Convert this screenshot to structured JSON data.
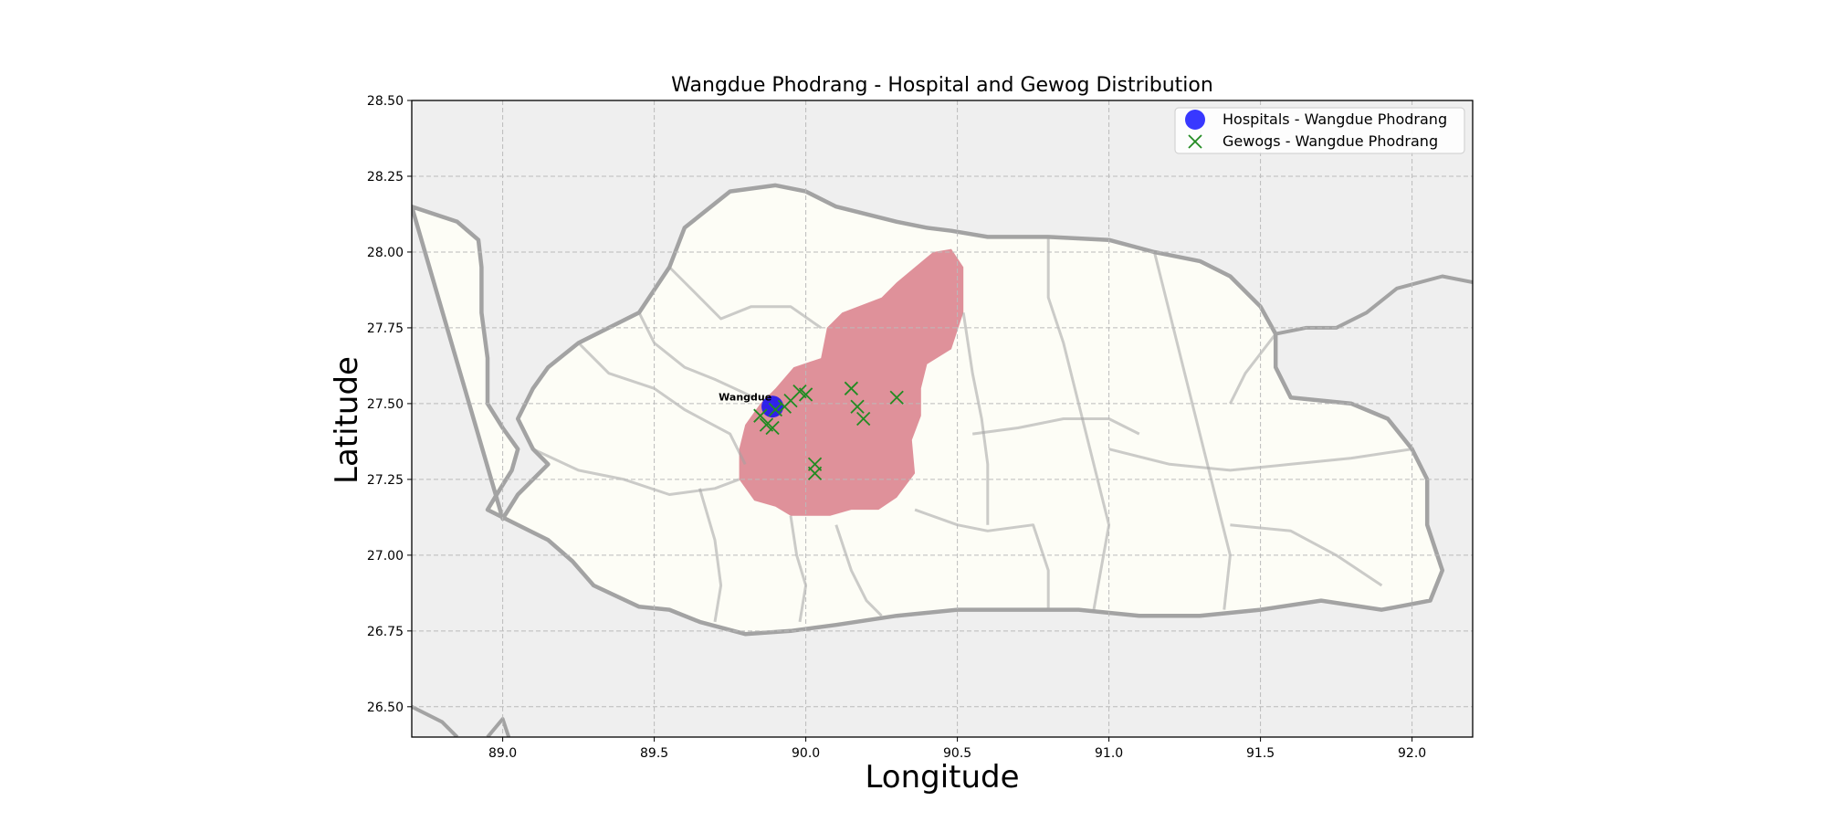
{
  "chart_data": {
    "type": "scatter",
    "title": "Wangdue Phodrang - Hospital and Gewog Distribution",
    "xlabel": "Longitude",
    "ylabel": "Latitude",
    "xlim": [
      88.7,
      92.2
    ],
    "ylim": [
      26.4,
      28.5
    ],
    "xticks": [
      89.0,
      89.5,
      90.0,
      90.5,
      91.0,
      91.5,
      92.0
    ],
    "yticks": [
      26.5,
      26.75,
      27.0,
      27.25,
      27.5,
      27.75,
      28.0,
      28.25,
      28.5
    ],
    "xtick_labels": [
      "89.0",
      "89.5",
      "90.0",
      "90.5",
      "91.0",
      "91.5",
      "92.0"
    ],
    "ytick_labels": [
      "26.50",
      "26.75",
      "27.00",
      "27.25",
      "27.50",
      "27.75",
      "28.00",
      "28.25",
      "28.50"
    ],
    "grid": true,
    "legend_position": "top-right",
    "series": [
      {
        "name": "Hospitals - Wangdue Phodrang",
        "marker": "circle",
        "color": "#0000ff",
        "points": [
          {
            "x": 89.89,
            "y": 27.49
          }
        ]
      },
      {
        "name": "Gewogs - Wangdue Phodrang",
        "marker": "x",
        "color": "#228b22",
        "points": [
          {
            "x": 89.85,
            "y": 27.46
          },
          {
            "x": 89.87,
            "y": 27.43
          },
          {
            "x": 89.89,
            "y": 27.42
          },
          {
            "x": 89.9,
            "y": 27.48
          },
          {
            "x": 89.93,
            "y": 27.49
          },
          {
            "x": 89.95,
            "y": 27.51
          },
          {
            "x": 89.98,
            "y": 27.54
          },
          {
            "x": 90.0,
            "y": 27.53
          },
          {
            "x": 90.03,
            "y": 27.3
          },
          {
            "x": 90.03,
            "y": 27.27
          },
          {
            "x": 90.15,
            "y": 27.55
          },
          {
            "x": 90.17,
            "y": 27.49
          },
          {
            "x": 90.19,
            "y": 27.45
          },
          {
            "x": 90.3,
            "y": 27.52
          }
        ]
      }
    ],
    "annotations": [
      {
        "text": "Wangdue",
        "x": 89.8,
        "y": 27.51
      }
    ]
  },
  "map": {
    "colors": {
      "background": "#efefef",
      "country_fill": "#fdfdf6",
      "border": "#a3a3a3",
      "highlight_fill": "#df919a",
      "grid": "#bbbbbb"
    },
    "country_outline": [
      [
        88.7,
        28.15
      ],
      [
        88.85,
        28.1
      ],
      [
        88.92,
        28.04
      ],
      [
        88.93,
        27.95
      ],
      [
        88.93,
        27.8
      ],
      [
        88.95,
        27.65
      ],
      [
        88.95,
        27.5
      ],
      [
        89.0,
        27.42
      ],
      [
        89.05,
        27.35
      ],
      [
        89.03,
        27.28
      ],
      [
        88.98,
        27.2
      ],
      [
        88.95,
        27.15
      ],
      [
        89.05,
        27.1
      ],
      [
        89.15,
        27.05
      ],
      [
        89.23,
        26.98
      ],
      [
        89.3,
        26.9
      ],
      [
        89.45,
        26.83
      ],
      [
        89.55,
        26.82
      ],
      [
        89.65,
        26.78
      ],
      [
        89.8,
        26.74
      ],
      [
        89.95,
        26.75
      ],
      [
        90.1,
        26.77
      ],
      [
        90.3,
        26.8
      ],
      [
        90.5,
        26.82
      ],
      [
        90.7,
        26.82
      ],
      [
        90.9,
        26.82
      ],
      [
        91.1,
        26.8
      ],
      [
        91.3,
        26.8
      ],
      [
        91.5,
        26.82
      ],
      [
        91.7,
        26.85
      ],
      [
        91.9,
        26.82
      ],
      [
        92.06,
        26.85
      ],
      [
        92.1,
        26.95
      ],
      [
        92.05,
        27.1
      ],
      [
        92.05,
        27.25
      ],
      [
        92.0,
        27.35
      ],
      [
        91.92,
        27.45
      ],
      [
        91.8,
        27.5
      ],
      [
        91.6,
        27.52
      ],
      [
        91.55,
        27.62
      ],
      [
        91.55,
        27.73
      ],
      [
        91.5,
        27.82
      ],
      [
        91.4,
        27.92
      ],
      [
        91.3,
        27.97
      ],
      [
        91.15,
        28.0
      ],
      [
        91.0,
        28.04
      ],
      [
        90.8,
        28.05
      ],
      [
        90.6,
        28.05
      ],
      [
        90.48,
        28.07
      ],
      [
        90.4,
        28.08
      ],
      [
        90.3,
        28.1
      ],
      [
        90.1,
        28.15
      ],
      [
        90.0,
        28.2
      ],
      [
        89.9,
        28.22
      ],
      [
        89.75,
        28.2
      ],
      [
        89.6,
        28.08
      ],
      [
        89.55,
        27.95
      ],
      [
        89.45,
        27.8
      ],
      [
        89.35,
        27.75
      ],
      [
        89.25,
        27.7
      ],
      [
        89.15,
        27.62
      ],
      [
        89.1,
        27.55
      ],
      [
        89.05,
        27.45
      ],
      [
        89.1,
        27.35
      ],
      [
        89.15,
        27.3
      ],
      [
        89.05,
        27.2
      ],
      [
        89.0,
        27.12
      ]
    ],
    "highlight_region": [
      [
        90.48,
        28.01
      ],
      [
        90.52,
        27.95
      ],
      [
        90.52,
        27.8
      ],
      [
        90.48,
        27.68
      ],
      [
        90.4,
        27.63
      ],
      [
        90.38,
        27.55
      ],
      [
        90.38,
        27.46
      ],
      [
        90.35,
        27.38
      ],
      [
        90.36,
        27.27
      ],
      [
        90.3,
        27.19
      ],
      [
        90.24,
        27.15
      ],
      [
        90.15,
        27.15
      ],
      [
        90.08,
        27.13
      ],
      [
        89.95,
        27.13
      ],
      [
        89.9,
        27.16
      ],
      [
        89.83,
        27.18
      ],
      [
        89.78,
        27.25
      ],
      [
        89.78,
        27.35
      ],
      [
        89.8,
        27.43
      ],
      [
        89.85,
        27.5
      ],
      [
        89.9,
        27.55
      ],
      [
        89.96,
        27.62
      ],
      [
        90.05,
        27.65
      ],
      [
        90.07,
        27.75
      ],
      [
        90.12,
        27.8
      ],
      [
        90.25,
        27.85
      ],
      [
        90.3,
        27.9
      ],
      [
        90.42,
        28.0
      ]
    ],
    "internal_borders": [
      [
        [
          89.55,
          27.95
        ],
        [
          89.65,
          27.85
        ],
        [
          89.72,
          27.78
        ],
        [
          89.82,
          27.82
        ],
        [
          89.95,
          27.82
        ],
        [
          90.05,
          27.75
        ]
      ],
      [
        [
          89.25,
          27.7
        ],
        [
          89.35,
          27.6
        ],
        [
          89.5,
          27.55
        ],
        [
          89.6,
          27.48
        ],
        [
          89.75,
          27.4
        ],
        [
          89.8,
          27.3
        ]
      ],
      [
        [
          89.45,
          27.8
        ],
        [
          89.5,
          27.7
        ],
        [
          89.6,
          27.62
        ],
        [
          89.7,
          27.58
        ],
        [
          89.83,
          27.52
        ]
      ],
      [
        [
          89.1,
          27.35
        ],
        [
          89.25,
          27.28
        ],
        [
          89.4,
          27.25
        ],
        [
          89.55,
          27.2
        ],
        [
          89.7,
          27.22
        ],
        [
          89.78,
          27.25
        ]
      ],
      [
        [
          89.65,
          27.22
        ],
        [
          89.7,
          27.05
        ],
        [
          89.72,
          26.9
        ],
        [
          89.7,
          26.78
        ]
      ],
      [
        [
          89.95,
          27.13
        ],
        [
          89.97,
          27.0
        ],
        [
          90.0,
          26.9
        ],
        [
          89.98,
          26.78
        ]
      ],
      [
        [
          90.1,
          27.1
        ],
        [
          90.15,
          26.95
        ],
        [
          90.2,
          26.85
        ],
        [
          90.25,
          26.8
        ]
      ],
      [
        [
          90.36,
          27.15
        ],
        [
          90.5,
          27.1
        ],
        [
          90.6,
          27.08
        ],
        [
          90.75,
          27.1
        ],
        [
          90.8,
          26.95
        ],
        [
          90.8,
          26.82
        ]
      ],
      [
        [
          90.52,
          27.8
        ],
        [
          90.55,
          27.6
        ],
        [
          90.58,
          27.45
        ],
        [
          90.6,
          27.3
        ],
        [
          90.6,
          27.1
        ]
      ],
      [
        [
          90.55,
          27.4
        ],
        [
          90.7,
          27.42
        ],
        [
          90.85,
          27.45
        ],
        [
          91.0,
          27.45
        ],
        [
          91.1,
          27.4
        ]
      ],
      [
        [
          90.8,
          28.05
        ],
        [
          90.8,
          27.85
        ],
        [
          90.85,
          27.7
        ],
        [
          90.9,
          27.5
        ],
        [
          90.95,
          27.3
        ],
        [
          91.0,
          27.1
        ],
        [
          90.95,
          26.82
        ]
      ],
      [
        [
          91.15,
          28.0
        ],
        [
          91.2,
          27.8
        ],
        [
          91.25,
          27.6
        ],
        [
          91.3,
          27.4
        ],
        [
          91.35,
          27.2
        ],
        [
          91.4,
          27.0
        ],
        [
          91.38,
          26.82
        ]
      ],
      [
        [
          91.0,
          27.35
        ],
        [
          91.2,
          27.3
        ],
        [
          91.4,
          27.28
        ],
        [
          91.6,
          27.3
        ],
        [
          91.8,
          27.32
        ],
        [
          92.0,
          27.35
        ]
      ],
      [
        [
          91.55,
          27.73
        ],
        [
          91.45,
          27.6
        ],
        [
          91.4,
          27.5
        ]
      ],
      [
        [
          91.4,
          27.1
        ],
        [
          91.6,
          27.08
        ],
        [
          91.75,
          27.0
        ],
        [
          91.9,
          26.9
        ]
      ]
    ],
    "neighbor_borders": [
      [
        [
          92.2,
          27.9
        ],
        [
          92.1,
          27.92
        ],
        [
          91.95,
          27.88
        ],
        [
          91.85,
          27.8
        ],
        [
          91.75,
          27.75
        ],
        [
          91.65,
          27.75
        ],
        [
          91.55,
          27.73
        ]
      ],
      [
        [
          88.7,
          26.5
        ],
        [
          88.8,
          26.45
        ],
        [
          88.85,
          26.4
        ]
      ],
      [
        [
          88.95,
          26.4
        ],
        [
          89.0,
          26.46
        ],
        [
          89.02,
          26.4
        ]
      ]
    ]
  }
}
